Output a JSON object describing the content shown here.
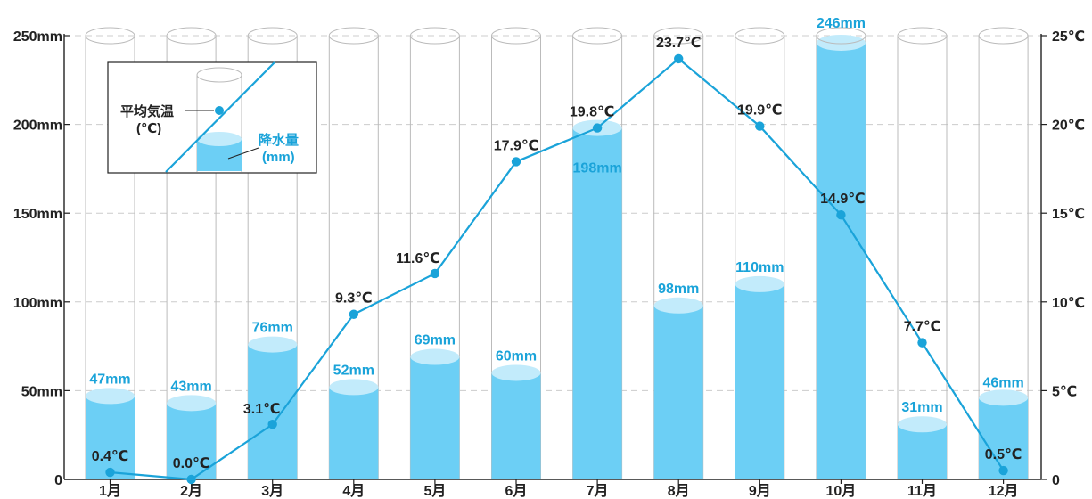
{
  "chart_data": {
    "type": "bar",
    "categories": [
      "1月",
      "2月",
      "3月",
      "4月",
      "5月",
      "6月",
      "7月",
      "8月",
      "9月",
      "10月",
      "11月",
      "12月"
    ],
    "series": [
      {
        "name": "降水量",
        "unit": "(mm)",
        "axis": "left",
        "values": [
          47,
          43,
          76,
          52,
          69,
          60,
          198,
          98,
          110,
          246,
          31,
          46
        ],
        "labels": [
          "47mm",
          "43mm",
          "76mm",
          "52mm",
          "69mm",
          "60mm",
          "198mm",
          "98mm",
          "110mm",
          "246mm",
          "31mm",
          "46mm"
        ]
      },
      {
        "name": "平均気温",
        "unit": "(℃)",
        "axis": "right",
        "type": "line",
        "values": [
          0.4,
          0.0,
          3.1,
          9.3,
          11.6,
          17.9,
          19.8,
          23.7,
          19.9,
          14.9,
          7.7,
          0.5
        ],
        "labels": [
          "0.4℃",
          "0.0℃",
          "3.1℃",
          "9.3℃",
          "11.6℃",
          "17.9℃",
          "19.8℃",
          "23.7℃",
          "19.9℃",
          "14.9℃",
          "7.7℃",
          "0.5℃"
        ]
      }
    ],
    "y_left": {
      "range": [
        0,
        250
      ],
      "ticks": [
        0,
        50,
        100,
        150,
        200,
        250
      ],
      "tick_labels": [
        "0",
        "50mm",
        "100mm",
        "150mm",
        "200mm",
        "250mm"
      ]
    },
    "y_right": {
      "range": [
        0,
        25
      ],
      "ticks": [
        0,
        5,
        10,
        15,
        20,
        25
      ],
      "tick_labels": [
        "0",
        "5℃",
        "10℃",
        "15℃",
        "20℃",
        "25℃"
      ]
    },
    "grid": true,
    "legend": {
      "position": "top-left",
      "temp_label": "平均気温",
      "temp_unit": "(℃)",
      "precip_label": "降水量",
      "precip_unit": "(mm)"
    }
  },
  "colors": {
    "water": "#6ccff5",
    "water_top": "#c2ebfb",
    "line": "#1aa3d9",
    "label_blue": "#1aa3d9",
    "cylinder_outline": "#bbbbbb",
    "grid": "#cccccc"
  }
}
